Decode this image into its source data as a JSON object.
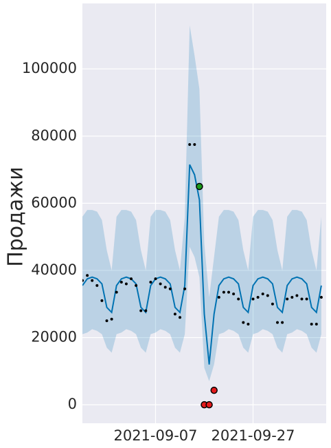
{
  "chart_data": {
    "type": "forecast",
    "ylabel": "Продажи",
    "x": [
      "2021-08-23",
      "2021-08-24",
      "2021-08-25",
      "2021-08-26",
      "2021-08-27",
      "2021-08-28",
      "2021-08-29",
      "2021-08-30",
      "2021-08-31",
      "2021-09-01",
      "2021-09-02",
      "2021-09-03",
      "2021-09-04",
      "2021-09-05",
      "2021-09-06",
      "2021-09-07",
      "2021-09-08",
      "2021-09-09",
      "2021-09-10",
      "2021-09-11",
      "2021-09-12",
      "2021-09-13",
      "2021-09-14",
      "2021-09-15",
      "2021-09-16",
      "2021-09-17",
      "2021-09-18",
      "2021-09-19",
      "2021-09-20",
      "2021-09-21",
      "2021-09-22",
      "2021-09-23",
      "2021-09-24",
      "2021-09-25",
      "2021-09-26",
      "2021-09-27",
      "2021-09-28",
      "2021-09-29",
      "2021-09-30",
      "2021-10-01",
      "2021-10-02",
      "2021-10-03",
      "2021-10-04",
      "2021-10-05",
      "2021-10-06",
      "2021-10-07",
      "2021-10-08",
      "2021-10-09",
      "2021-10-10",
      "2021-10-11"
    ],
    "xlim": [
      "2021-08-23",
      "2021-10-12"
    ],
    "xticks": [
      "2021-09-07",
      "2021-09-27"
    ],
    "ylim": [
      -5500,
      119500
    ],
    "yticks": [
      0,
      20000,
      40000,
      60000,
      80000,
      100000
    ],
    "grid": true,
    "series": [
      {
        "kind": "band",
        "color": "#0072b2",
        "lower": [
          21000,
          21500,
          22500,
          22000,
          21000,
          17000,
          15500,
          21000,
          21500,
          22500,
          22000,
          21000,
          17000,
          15500,
          21000,
          21500,
          22500,
          22000,
          21000,
          17000,
          15500,
          21000,
          47000,
          44000,
          38000,
          11000,
          7000,
          12000,
          21000,
          21500,
          22500,
          22000,
          21000,
          17000,
          15500,
          21000,
          21500,
          22500,
          22000,
          21000,
          17000,
          15500,
          21000,
          21500,
          22500,
          22000,
          21000,
          17000,
          15500,
          21000
        ],
        "upper": [
          56000,
          58000,
          58000,
          57500,
          55000,
          46000,
          40000,
          56000,
          58000,
          58000,
          57500,
          55000,
          46000,
          40000,
          56000,
          58000,
          58000,
          57500,
          55000,
          46000,
          40000,
          56000,
          113000,
          104000,
          94000,
          48000,
          32000,
          44000,
          56000,
          58000,
          58000,
          57500,
          55000,
          46000,
          40000,
          56000,
          58000,
          58000,
          57500,
          55000,
          46000,
          40000,
          56000,
          58000,
          58000,
          57500,
          55000,
          46000,
          40000,
          56000
        ]
      },
      {
        "kind": "line",
        "color": "#0072b2",
        "values": [
          35500,
          37500,
          38000,
          37500,
          36000,
          29000,
          27500,
          35500,
          37500,
          38000,
          37500,
          36000,
          29000,
          27500,
          35500,
          37500,
          38000,
          37500,
          36000,
          29000,
          27500,
          35500,
          71500,
          68500,
          61000,
          27000,
          12000,
          27000,
          35500,
          37500,
          38000,
          37500,
          36000,
          29000,
          27500,
          35500,
          37500,
          38000,
          37500,
          36000,
          29000,
          27500,
          35500,
          37500,
          38000,
          37500,
          36000,
          29000,
          27500,
          35500
        ]
      },
      {
        "kind": "points",
        "color": "#000000",
        "values": [
          37000,
          38500,
          37000,
          35500,
          31000,
          25000,
          25500,
          33500,
          36500,
          36000,
          37500,
          35500,
          28000,
          28000,
          36500,
          37500,
          36000,
          35000,
          34500,
          27000,
          26000,
          34500,
          77500,
          77500,
          null,
          null,
          null,
          null,
          32000,
          33500,
          33500,
          33000,
          31500,
          24500,
          24000,
          31500,
          32000,
          33000,
          32500,
          30000,
          24500,
          24500,
          31500,
          32000,
          32500,
          31500,
          31500,
          24000,
          24000,
          32000
        ]
      },
      {
        "kind": "marker",
        "color": "#1a9a1a",
        "values": [
          null,
          null,
          null,
          null,
          null,
          null,
          null,
          null,
          null,
          null,
          null,
          null,
          null,
          null,
          null,
          null,
          null,
          null,
          null,
          null,
          null,
          null,
          null,
          null,
          65000,
          null,
          null,
          null,
          null,
          null,
          null,
          null,
          null,
          null,
          null,
          null,
          null,
          null,
          null,
          null,
          null,
          null,
          null,
          null,
          null,
          null,
          null,
          null,
          null,
          null
        ]
      },
      {
        "kind": "marker",
        "color": "#e31a1c",
        "values": [
          null,
          null,
          null,
          null,
          null,
          null,
          null,
          null,
          null,
          null,
          null,
          null,
          null,
          null,
          null,
          null,
          null,
          null,
          null,
          null,
          null,
          null,
          null,
          null,
          null,
          0,
          0,
          4300,
          null,
          null,
          null,
          null,
          null,
          null,
          null,
          null,
          null,
          null,
          null,
          null,
          null,
          null,
          null,
          null,
          null,
          null,
          null,
          null,
          null,
          null
        ]
      }
    ]
  }
}
